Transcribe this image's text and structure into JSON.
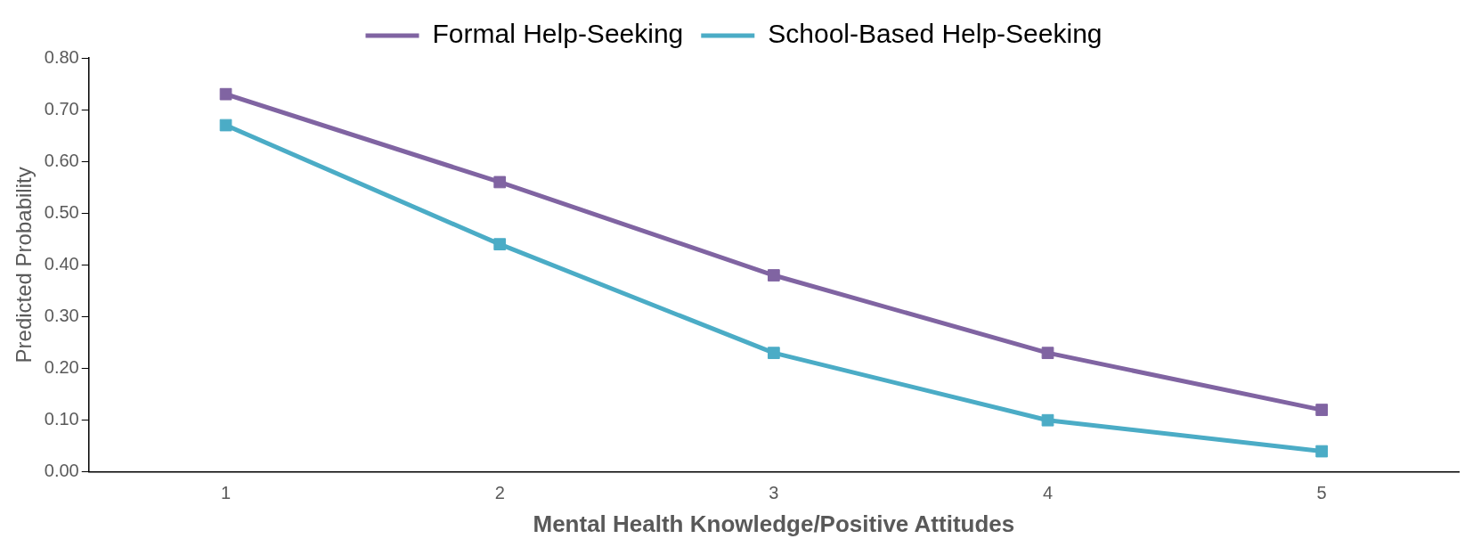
{
  "chart_data": {
    "type": "line",
    "xlabel": "Mental Health Knowledge/Positive Attitudes",
    "ylabel": "Predicted Probability",
    "categories": [
      "1",
      "2",
      "3",
      "4",
      "5"
    ],
    "series": [
      {
        "name": "Formal Help-Seeking",
        "color": "#8064a2",
        "values": [
          0.73,
          0.56,
          0.38,
          0.23,
          0.12
        ]
      },
      {
        "name": "School-Based Help-Seeking",
        "color": "#4bacc6",
        "values": [
          0.67,
          0.44,
          0.23,
          0.1,
          0.04
        ]
      }
    ],
    "ylim": [
      0,
      0.8
    ],
    "yticks": [
      {
        "value": 0,
        "label": "0.00"
      },
      {
        "value": 0.1,
        "label": "0.10"
      },
      {
        "value": 0.2,
        "label": "0.20"
      },
      {
        "value": 0.3,
        "label": "0.30"
      },
      {
        "value": 0.4,
        "label": "0.40"
      },
      {
        "value": 0.5,
        "label": "0.50"
      },
      {
        "value": 0.6,
        "label": "0.60"
      },
      {
        "value": 0.7,
        "label": "0.70"
      },
      {
        "value": 0.8,
        "label": "0.80"
      }
    ],
    "grid": false,
    "legend": "top",
    "marker": "square",
    "line_style": "solid"
  }
}
